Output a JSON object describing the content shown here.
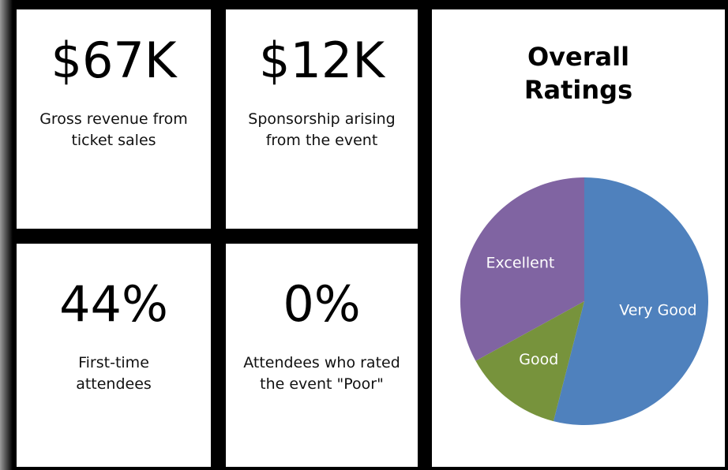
{
  "kpis": [
    {
      "value": "$67K",
      "label": "Gross revenue from ticket sales"
    },
    {
      "value": "$12K",
      "label": "Sponsorship arising from the event"
    },
    {
      "value": "44%",
      "label": "First-time attendees"
    },
    {
      "value": "0%",
      "label": "Attendees who rated the event \"Poor\""
    }
  ],
  "chart_data": {
    "type": "pie",
    "title": "Overall Ratings",
    "categories": [
      "Very Good",
      "Good",
      "Excellent"
    ],
    "values": [
      54,
      13,
      33
    ],
    "colors": [
      "#4f81bd",
      "#77933c",
      "#8064a2"
    ]
  }
}
